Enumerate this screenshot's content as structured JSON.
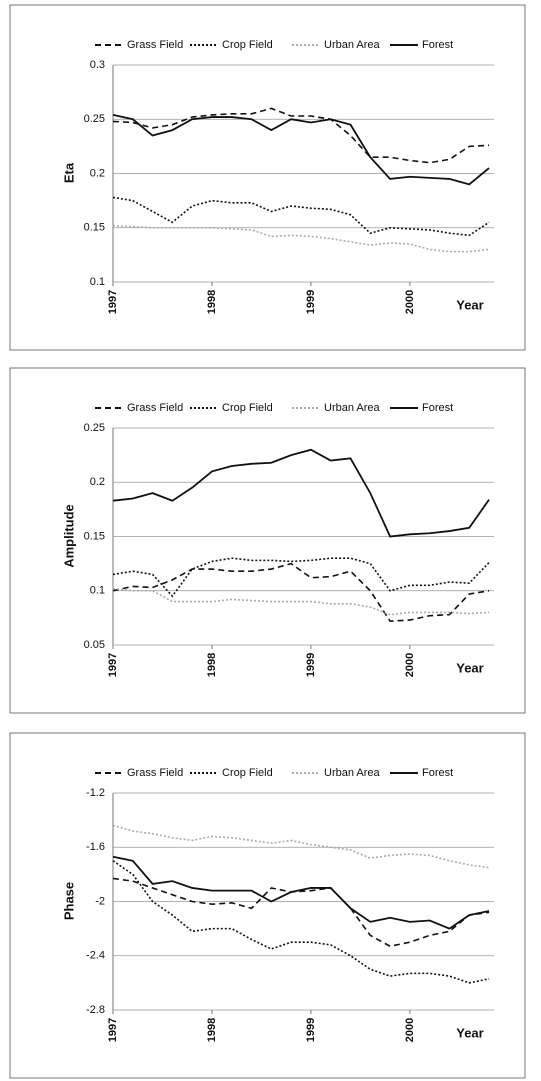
{
  "chart_data": [
    {
      "type": "line",
      "ylabel": "Eta",
      "xlabel": "Year",
      "xlim": [
        1997,
        2000.85
      ],
      "xticks": [
        1997,
        1998,
        1999,
        2000
      ],
      "ylim": [
        0.1,
        0.3
      ],
      "yticks": [
        0.1,
        0.15,
        0.2,
        0.25,
        0.3
      ],
      "grid": true,
      "x": [
        1997,
        1997.2,
        1997.4,
        1997.6,
        1997.8,
        1998,
        1998.2,
        1998.4,
        1998.6,
        1998.8,
        1999,
        1999.2,
        1999.4,
        1999.6,
        1999.8,
        2000,
        2000.2,
        2000.4,
        2000.6,
        2000.8
      ],
      "series": [
        {
          "name": "Grass Field",
          "color": "#111111",
          "dash": "dashed",
          "values": [
            0.248,
            0.247,
            0.242,
            0.245,
            0.252,
            0.254,
            0.255,
            0.255,
            0.26,
            0.253,
            0.253,
            0.25,
            0.235,
            0.215,
            0.215,
            0.212,
            0.21,
            0.213,
            0.225,
            0.226
          ]
        },
        {
          "name": "Crop Field",
          "color": "#111111",
          "dash": "dotted",
          "values": [
            0.178,
            0.175,
            0.165,
            0.155,
            0.17,
            0.175,
            0.173,
            0.173,
            0.165,
            0.17,
            0.168,
            0.167,
            0.162,
            0.145,
            0.15,
            0.149,
            0.148,
            0.145,
            0.143,
            0.155
          ]
        },
        {
          "name": "Urban Area",
          "color": "#aaaaaa",
          "dash": "dotted",
          "values": [
            0.152,
            0.151,
            0.15,
            0.15,
            0.15,
            0.15,
            0.149,
            0.148,
            0.142,
            0.143,
            0.142,
            0.14,
            0.137,
            0.134,
            0.136,
            0.135,
            0.13,
            0.128,
            0.128,
            0.13
          ]
        },
        {
          "name": "Forest",
          "color": "#111111",
          "dash": "solid",
          "values": [
            0.254,
            0.25,
            0.235,
            0.24,
            0.25,
            0.252,
            0.252,
            0.25,
            0.24,
            0.25,
            0.247,
            0.25,
            0.245,
            0.215,
            0.195,
            0.197,
            0.196,
            0.195,
            0.19,
            0.205
          ]
        }
      ]
    },
    {
      "type": "line",
      "ylabel": "Amplitude",
      "xlabel": "Year",
      "xlim": [
        1997,
        2000.85
      ],
      "xticks": [
        1997,
        1998,
        1999,
        2000
      ],
      "ylim": [
        0.05,
        0.25
      ],
      "yticks": [
        0.05,
        0.1,
        0.15,
        0.2,
        0.25
      ],
      "grid": true,
      "x": [
        1997,
        1997.2,
        1997.4,
        1997.6,
        1997.8,
        1998,
        1998.2,
        1998.4,
        1998.6,
        1998.8,
        1999,
        1999.2,
        1999.4,
        1999.6,
        1999.8,
        2000,
        2000.2,
        2000.4,
        2000.6,
        2000.8
      ],
      "series": [
        {
          "name": "Grass Field",
          "color": "#111111",
          "dash": "dashed",
          "values": [
            0.1,
            0.104,
            0.103,
            0.11,
            0.12,
            0.12,
            0.118,
            0.118,
            0.12,
            0.125,
            0.112,
            0.113,
            0.118,
            0.1,
            0.072,
            0.073,
            0.077,
            0.078,
            0.097,
            0.1
          ]
        },
        {
          "name": "Crop Field",
          "color": "#111111",
          "dash": "dotted",
          "values": [
            0.115,
            0.118,
            0.115,
            0.095,
            0.12,
            0.127,
            0.13,
            0.128,
            0.128,
            0.127,
            0.128,
            0.13,
            0.13,
            0.125,
            0.1,
            0.105,
            0.105,
            0.108,
            0.107,
            0.126
          ]
        },
        {
          "name": "Urban Area",
          "color": "#aaaaaa",
          "dash": "dotted",
          "values": [
            0.102,
            0.1,
            0.1,
            0.09,
            0.09,
            0.09,
            0.092,
            0.091,
            0.09,
            0.09,
            0.09,
            0.088,
            0.088,
            0.085,
            0.078,
            0.08,
            0.08,
            0.08,
            0.079,
            0.08
          ]
        },
        {
          "name": "Forest",
          "color": "#111111",
          "dash": "solid",
          "values": [
            0.183,
            0.185,
            0.19,
            0.183,
            0.195,
            0.21,
            0.215,
            0.217,
            0.218,
            0.225,
            0.23,
            0.22,
            0.222,
            0.19,
            0.15,
            0.152,
            0.153,
            0.155,
            0.158,
            0.184
          ]
        }
      ]
    },
    {
      "type": "line",
      "ylabel": "Phase",
      "xlabel": "Year",
      "xlim": [
        1997,
        2000.85
      ],
      "xticks": [
        1997,
        1998,
        1999,
        2000
      ],
      "ylim": [
        -2.8,
        -1.2
      ],
      "yticks": [
        -2.8,
        -2.4,
        -2,
        -1.6,
        -1.2
      ],
      "grid": true,
      "x": [
        1997,
        1997.2,
        1997.4,
        1997.6,
        1997.8,
        1998,
        1998.2,
        1998.4,
        1998.6,
        1998.8,
        1999,
        1999.2,
        1999.4,
        1999.6,
        1999.8,
        2000,
        2000.2,
        2000.4,
        2000.6,
        2000.8
      ],
      "series": [
        {
          "name": "Grass Field",
          "color": "#111111",
          "dash": "dashed",
          "values": [
            -1.83,
            -1.85,
            -1.9,
            -1.95,
            -2.0,
            -2.02,
            -2.01,
            -2.05,
            -1.9,
            -1.93,
            -1.92,
            -1.9,
            -2.05,
            -2.25,
            -2.33,
            -2.3,
            -2.25,
            -2.22,
            -2.1,
            -2.08
          ]
        },
        {
          "name": "Crop Field",
          "color": "#111111",
          "dash": "dotted",
          "values": [
            -1.7,
            -1.8,
            -2.0,
            -2.1,
            -2.22,
            -2.2,
            -2.2,
            -2.28,
            -2.35,
            -2.3,
            -2.3,
            -2.32,
            -2.4,
            -2.5,
            -2.55,
            -2.53,
            -2.53,
            -2.55,
            -2.6,
            -2.57
          ]
        },
        {
          "name": "Urban Area",
          "color": "#aaaaaa",
          "dash": "dotted",
          "values": [
            -1.44,
            -1.48,
            -1.5,
            -1.53,
            -1.55,
            -1.52,
            -1.53,
            -1.55,
            -1.57,
            -1.55,
            -1.58,
            -1.6,
            -1.62,
            -1.68,
            -1.66,
            -1.65,
            -1.66,
            -1.7,
            -1.73,
            -1.75
          ]
        },
        {
          "name": "Forest",
          "color": "#111111",
          "dash": "solid",
          "values": [
            -1.67,
            -1.7,
            -1.87,
            -1.85,
            -1.9,
            -1.92,
            -1.92,
            -1.92,
            -2.0,
            -1.93,
            -1.9,
            -1.9,
            -2.05,
            -2.15,
            -2.12,
            -2.15,
            -2.14,
            -2.2,
            -2.1,
            -2.07
          ]
        }
      ]
    }
  ]
}
